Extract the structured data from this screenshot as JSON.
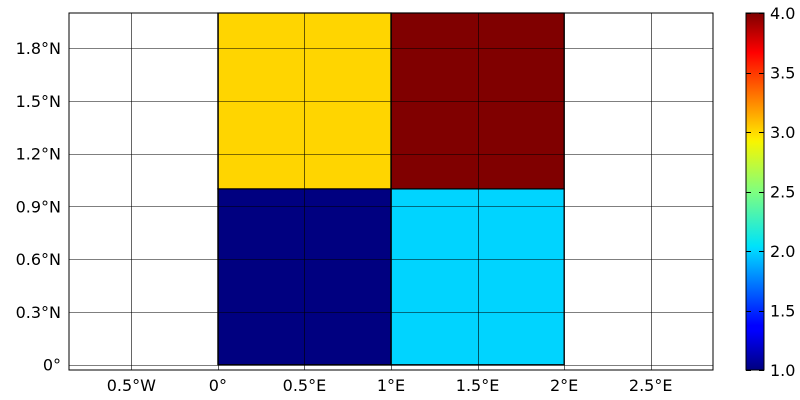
{
  "chart_data": {
    "type": "heatmap",
    "title": "",
    "xlabel": "",
    "ylabel": "",
    "xlim": [
      -0.86,
      2.86
    ],
    "ylim": [
      -0.03,
      2.0
    ],
    "grid": true,
    "x_ticks": [
      {
        "value": -0.5,
        "label": "0.5°W"
      },
      {
        "value": 0,
        "label": "0°"
      },
      {
        "value": 0.5,
        "label": "0.5°E"
      },
      {
        "value": 1,
        "label": "1°E"
      },
      {
        "value": 1.5,
        "label": "1.5°E"
      },
      {
        "value": 2,
        "label": "2°E"
      },
      {
        "value": 2.5,
        "label": "2.5°E"
      }
    ],
    "y_ticks": [
      {
        "value": 0,
        "label": "0°"
      },
      {
        "value": 0.3,
        "label": "0.3°N"
      },
      {
        "value": 0.6,
        "label": "0.6°N"
      },
      {
        "value": 0.9,
        "label": "0.9°N"
      },
      {
        "value": 1.2,
        "label": "1.2°N"
      },
      {
        "value": 1.5,
        "label": "1.5°N"
      },
      {
        "value": 1.8,
        "label": "1.8°N"
      }
    ],
    "cells": [
      {
        "x0": 0,
        "x1": 1,
        "y0": 0,
        "y1": 1,
        "value": 1.0
      },
      {
        "x0": 1,
        "x1": 2,
        "y0": 0,
        "y1": 1,
        "value": 2.0
      },
      {
        "x0": 0,
        "x1": 1,
        "y0": 1,
        "y1": 2,
        "value": 3.0
      },
      {
        "x0": 1,
        "x1": 2,
        "y0": 1,
        "y1": 2,
        "value": 4.0
      }
    ],
    "colorbar": {
      "colormap": "jet",
      "range": [
        1.0,
        4.0
      ],
      "ticks": [
        {
          "value": 1.0,
          "label": "1.0"
        },
        {
          "value": 1.5,
          "label": "1.5"
        },
        {
          "value": 2.0,
          "label": "2.0"
        },
        {
          "value": 2.5,
          "label": "2.5"
        },
        {
          "value": 3.0,
          "label": "3.0"
        },
        {
          "value": 3.5,
          "label": "3.5"
        },
        {
          "value": 4.0,
          "label": "4.0"
        }
      ]
    }
  }
}
